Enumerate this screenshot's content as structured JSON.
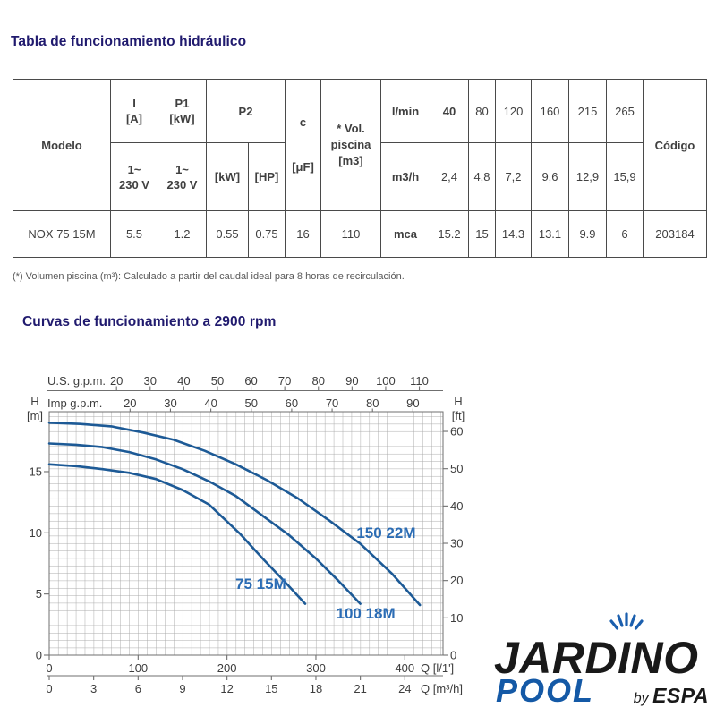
{
  "page": {
    "title_table": "Tabla de funcionamiento hidráulico",
    "footnote": "(*) Volumen piscina (m³): Calculado a partir del caudal ideal para 8 horas de recirculación.",
    "title_curves": "Curvas de funcionamiento a 2900 rpm",
    "colors": {
      "heading": "#201a6e"
    }
  },
  "table": {
    "header": {
      "modelo": "Modelo",
      "i": "I\n[A]",
      "p1": "P1\n[kW]",
      "p2": "P2",
      "voltage1": "1~\n230 V",
      "voltage2": "1~\n230 V",
      "p2_kw": "[kW]",
      "p2_hp": "[HP]",
      "c": "c\n[μF]",
      "vol": "* Vol.\npiscina\n[m3]",
      "lmin_label": "l/min",
      "m3h_label": "m3/h",
      "codigo": "Código",
      "lmin_values": [
        "40",
        "80",
        "120",
        "160",
        "215",
        "265"
      ],
      "m3h_values": [
        "2,4",
        "4,8",
        "7,2",
        "9,6",
        "12,9",
        "15,9"
      ]
    },
    "row": {
      "modelo": "NOX 75 15M",
      "i": "5.5",
      "p1": "1.2",
      "p2_kw": "0.55",
      "p2_hp": "0.75",
      "c": "16",
      "vol": "110",
      "mca_label": "mca",
      "mca_values": [
        "15.2",
        "15",
        "14.3",
        "13.1",
        "9.9",
        "6"
      ],
      "codigo": "203184"
    }
  },
  "chart_data": {
    "type": "line",
    "title": "Curvas de funcionamiento a 2900 rpm",
    "rpm": 2900,
    "xlim": [
      0,
      443
    ],
    "ylim_m": [
      0,
      19.9
    ],
    "grid": true,
    "axes": {
      "top_us": {
        "label": "U.S. g.p.m.",
        "ticks": [
          20,
          30,
          40,
          50,
          60,
          70,
          80,
          90,
          100,
          110
        ],
        "lmin_per_unit": 3.785
      },
      "top_imp": {
        "label": "Imp g.p.m.",
        "ticks": [
          20,
          30,
          40,
          50,
          60,
          70,
          80,
          90
        ],
        "lmin_per_unit": 4.546
      },
      "left": {
        "label": "H",
        "unit": "[m]",
        "ticks": [
          0,
          5,
          10,
          15
        ]
      },
      "right": {
        "label": "H",
        "unit": "[ft]",
        "ticks": [
          0,
          10,
          20,
          30,
          40,
          50,
          60
        ],
        "m_per_unit": 0.3048
      },
      "bottom_lmin": {
        "label": "Q [l/1']",
        "ticks": [
          0,
          100,
          200,
          300,
          400
        ],
        "lmin_per_unit": 1
      },
      "bottom_m3h": {
        "label": "Q [m³/h]",
        "ticks": [
          0,
          3,
          6,
          9,
          12,
          15,
          18,
          21,
          24
        ],
        "lmin_per_unit": 16.667
      }
    },
    "series": [
      {
        "id": "s75",
        "label": "75 15M",
        "label_at": [
          238,
          5.4
        ],
        "points": [
          [
            0,
            15.6
          ],
          [
            30,
            15.45
          ],
          [
            60,
            15.2
          ],
          [
            90,
            14.9
          ],
          [
            120,
            14.4
          ],
          [
            150,
            13.5
          ],
          [
            180,
            12.3
          ],
          [
            215,
            9.9
          ],
          [
            240,
            7.9
          ],
          [
            265,
            6.0
          ],
          [
            288,
            4.2
          ]
        ]
      },
      {
        "id": "s100",
        "label": "100 18M",
        "label_at": [
          356,
          3.0
        ],
        "points": [
          [
            0,
            17.3
          ],
          [
            30,
            17.2
          ],
          [
            60,
            17.0
          ],
          [
            90,
            16.6
          ],
          [
            120,
            16.0
          ],
          [
            150,
            15.2
          ],
          [
            180,
            14.2
          ],
          [
            210,
            13.0
          ],
          [
            240,
            11.4
          ],
          [
            270,
            9.8
          ],
          [
            300,
            7.9
          ],
          [
            325,
            6.1
          ],
          [
            350,
            4.2
          ]
        ]
      },
      {
        "id": "s150",
        "label": "150 22M",
        "label_at": [
          379,
          9.6
        ],
        "points": [
          [
            0,
            19.0
          ],
          [
            35,
            18.9
          ],
          [
            70,
            18.7
          ],
          [
            105,
            18.2
          ],
          [
            140,
            17.6
          ],
          [
            175,
            16.7
          ],
          [
            210,
            15.6
          ],
          [
            245,
            14.3
          ],
          [
            280,
            12.8
          ],
          [
            315,
            11.0
          ],
          [
            350,
            9.1
          ],
          [
            385,
            6.7
          ],
          [
            417,
            4.1
          ]
        ]
      }
    ],
    "colors": {
      "curve": "#1d5a96",
      "series_label": "#2b6cb4",
      "grid": "#ababab",
      "axis": "#6f6f6f",
      "tick_text": "#3d3d3d"
    }
  },
  "logo": {
    "brand": "JARDINO",
    "sub_brand": "POOL",
    "byline_by": "by",
    "byline_brand": "ESPA",
    "colors": {
      "brand": "#191919",
      "sub_brand": "#1459a6",
      "spray": "#1b5fae"
    }
  }
}
